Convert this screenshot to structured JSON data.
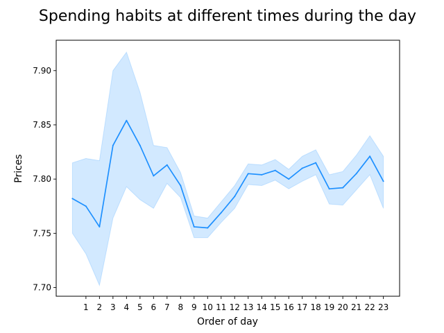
{
  "chart_data": {
    "type": "line",
    "title": "Spending habits at different times during the day",
    "xlabel": "Order of day",
    "ylabel": "Prices",
    "x": [
      0,
      1,
      2,
      3,
      4,
      5,
      6,
      7,
      8,
      9,
      10,
      11,
      12,
      13,
      14,
      15,
      16,
      17,
      18,
      19,
      20,
      21,
      22,
      23
    ],
    "x_tick_labels": [
      "1",
      "2",
      "3",
      "4",
      "5",
      "6",
      "7",
      "8",
      "9",
      "10",
      "11",
      "12",
      "13",
      "14",
      "15",
      "16",
      "17",
      "18",
      "19",
      "20",
      "21",
      "22",
      "23"
    ],
    "x_tick_values": [
      1,
      2,
      3,
      4,
      5,
      6,
      7,
      8,
      9,
      10,
      11,
      12,
      13,
      14,
      15,
      16,
      17,
      18,
      19,
      20,
      21,
      22,
      23
    ],
    "y_ticks": [
      7.7,
      7.75,
      7.8,
      7.85,
      7.9
    ],
    "y_tick_labels": [
      "7.70",
      "7.75",
      "7.80",
      "7.85",
      "7.90"
    ],
    "xlim": [
      -1.2,
      24.2
    ],
    "ylim": [
      7.692,
      7.928
    ],
    "grid": false,
    "series": [
      {
        "values": [
          7.782,
          7.775,
          7.756,
          7.831,
          7.854,
          7.831,
          7.803,
          7.813,
          7.794,
          7.756,
          7.755,
          7.769,
          7.784,
          7.805,
          7.804,
          7.808,
          7.8,
          7.81,
          7.815,
          7.791,
          7.792,
          7.805,
          7.821,
          7.798
        ],
        "ci_lower": [
          7.75,
          7.731,
          7.702,
          7.764,
          7.793,
          7.781,
          7.773,
          7.796,
          7.783,
          7.746,
          7.746,
          7.76,
          7.773,
          7.795,
          7.794,
          7.799,
          7.791,
          7.798,
          7.804,
          7.777,
          7.776,
          7.79,
          7.804,
          7.773
        ],
        "ci_upper": [
          7.815,
          7.819,
          7.817,
          7.9,
          7.917,
          7.88,
          7.831,
          7.829,
          7.806,
          7.766,
          7.764,
          7.779,
          7.794,
          7.814,
          7.813,
          7.818,
          7.809,
          7.821,
          7.827,
          7.804,
          7.807,
          7.822,
          7.84,
          7.821
        ],
        "color": "#1e90ff",
        "band_color": "#1e90ff"
      }
    ]
  }
}
